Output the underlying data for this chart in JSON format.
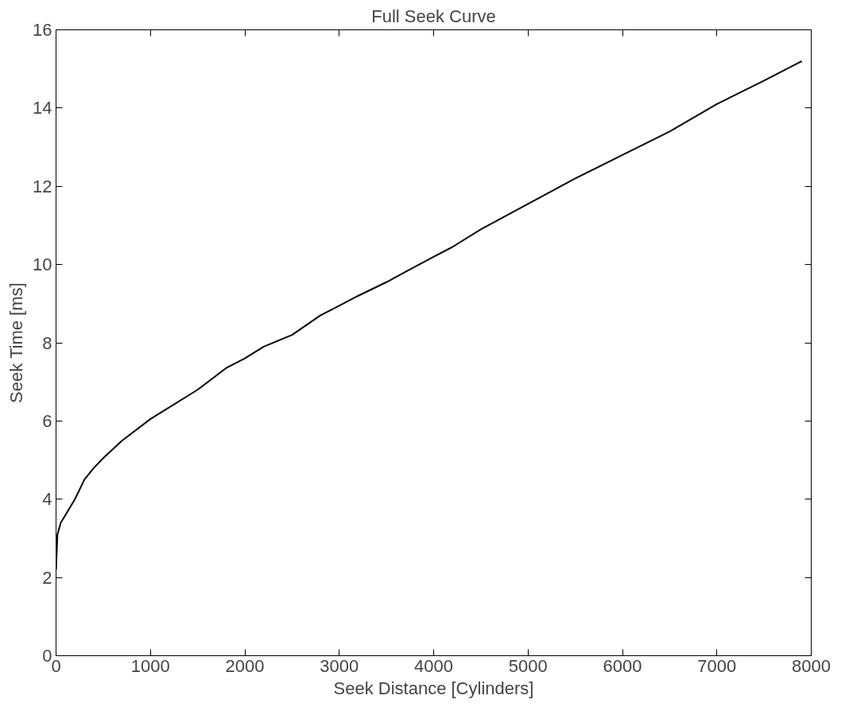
{
  "chart_data": {
    "type": "line",
    "title": "Full Seek Curve",
    "xlabel": "Seek Distance [Cylinders]",
    "ylabel": "Seek Time [ms]",
    "x": [
      0,
      15,
      50,
      100,
      200,
      300,
      400,
      500,
      700,
      1000,
      1200,
      1500,
      1800,
      2000,
      2200,
      2500,
      2800,
      3000,
      3200,
      3500,
      4000,
      4200,
      4500,
      5000,
      5500,
      6000,
      6500,
      7000,
      7500,
      7900
    ],
    "series": [
      {
        "color": "#000000",
        "values": [
          2.2,
          3.1,
          3.4,
          3.6,
          4.0,
          4.5,
          4.8,
          5.05,
          5.5,
          6.05,
          6.35,
          6.8,
          7.35,
          7.6,
          7.9,
          8.2,
          8.7,
          8.95,
          9.2,
          9.55,
          10.2,
          10.45,
          10.9,
          11.55,
          12.2,
          12.8,
          13.4,
          14.1,
          14.7,
          15.2
        ]
      }
    ],
    "xlim": [
      0,
      8000
    ],
    "xticks": [
      0,
      1000,
      2000,
      3000,
      4000,
      5000,
      6000,
      7000,
      8000
    ],
    "ylim": [
      0,
      16
    ],
    "yticks": [
      0,
      2,
      4,
      6,
      8,
      10,
      12,
      14,
      16
    ],
    "grid": false,
    "marker": "none",
    "line_style": "solid"
  }
}
